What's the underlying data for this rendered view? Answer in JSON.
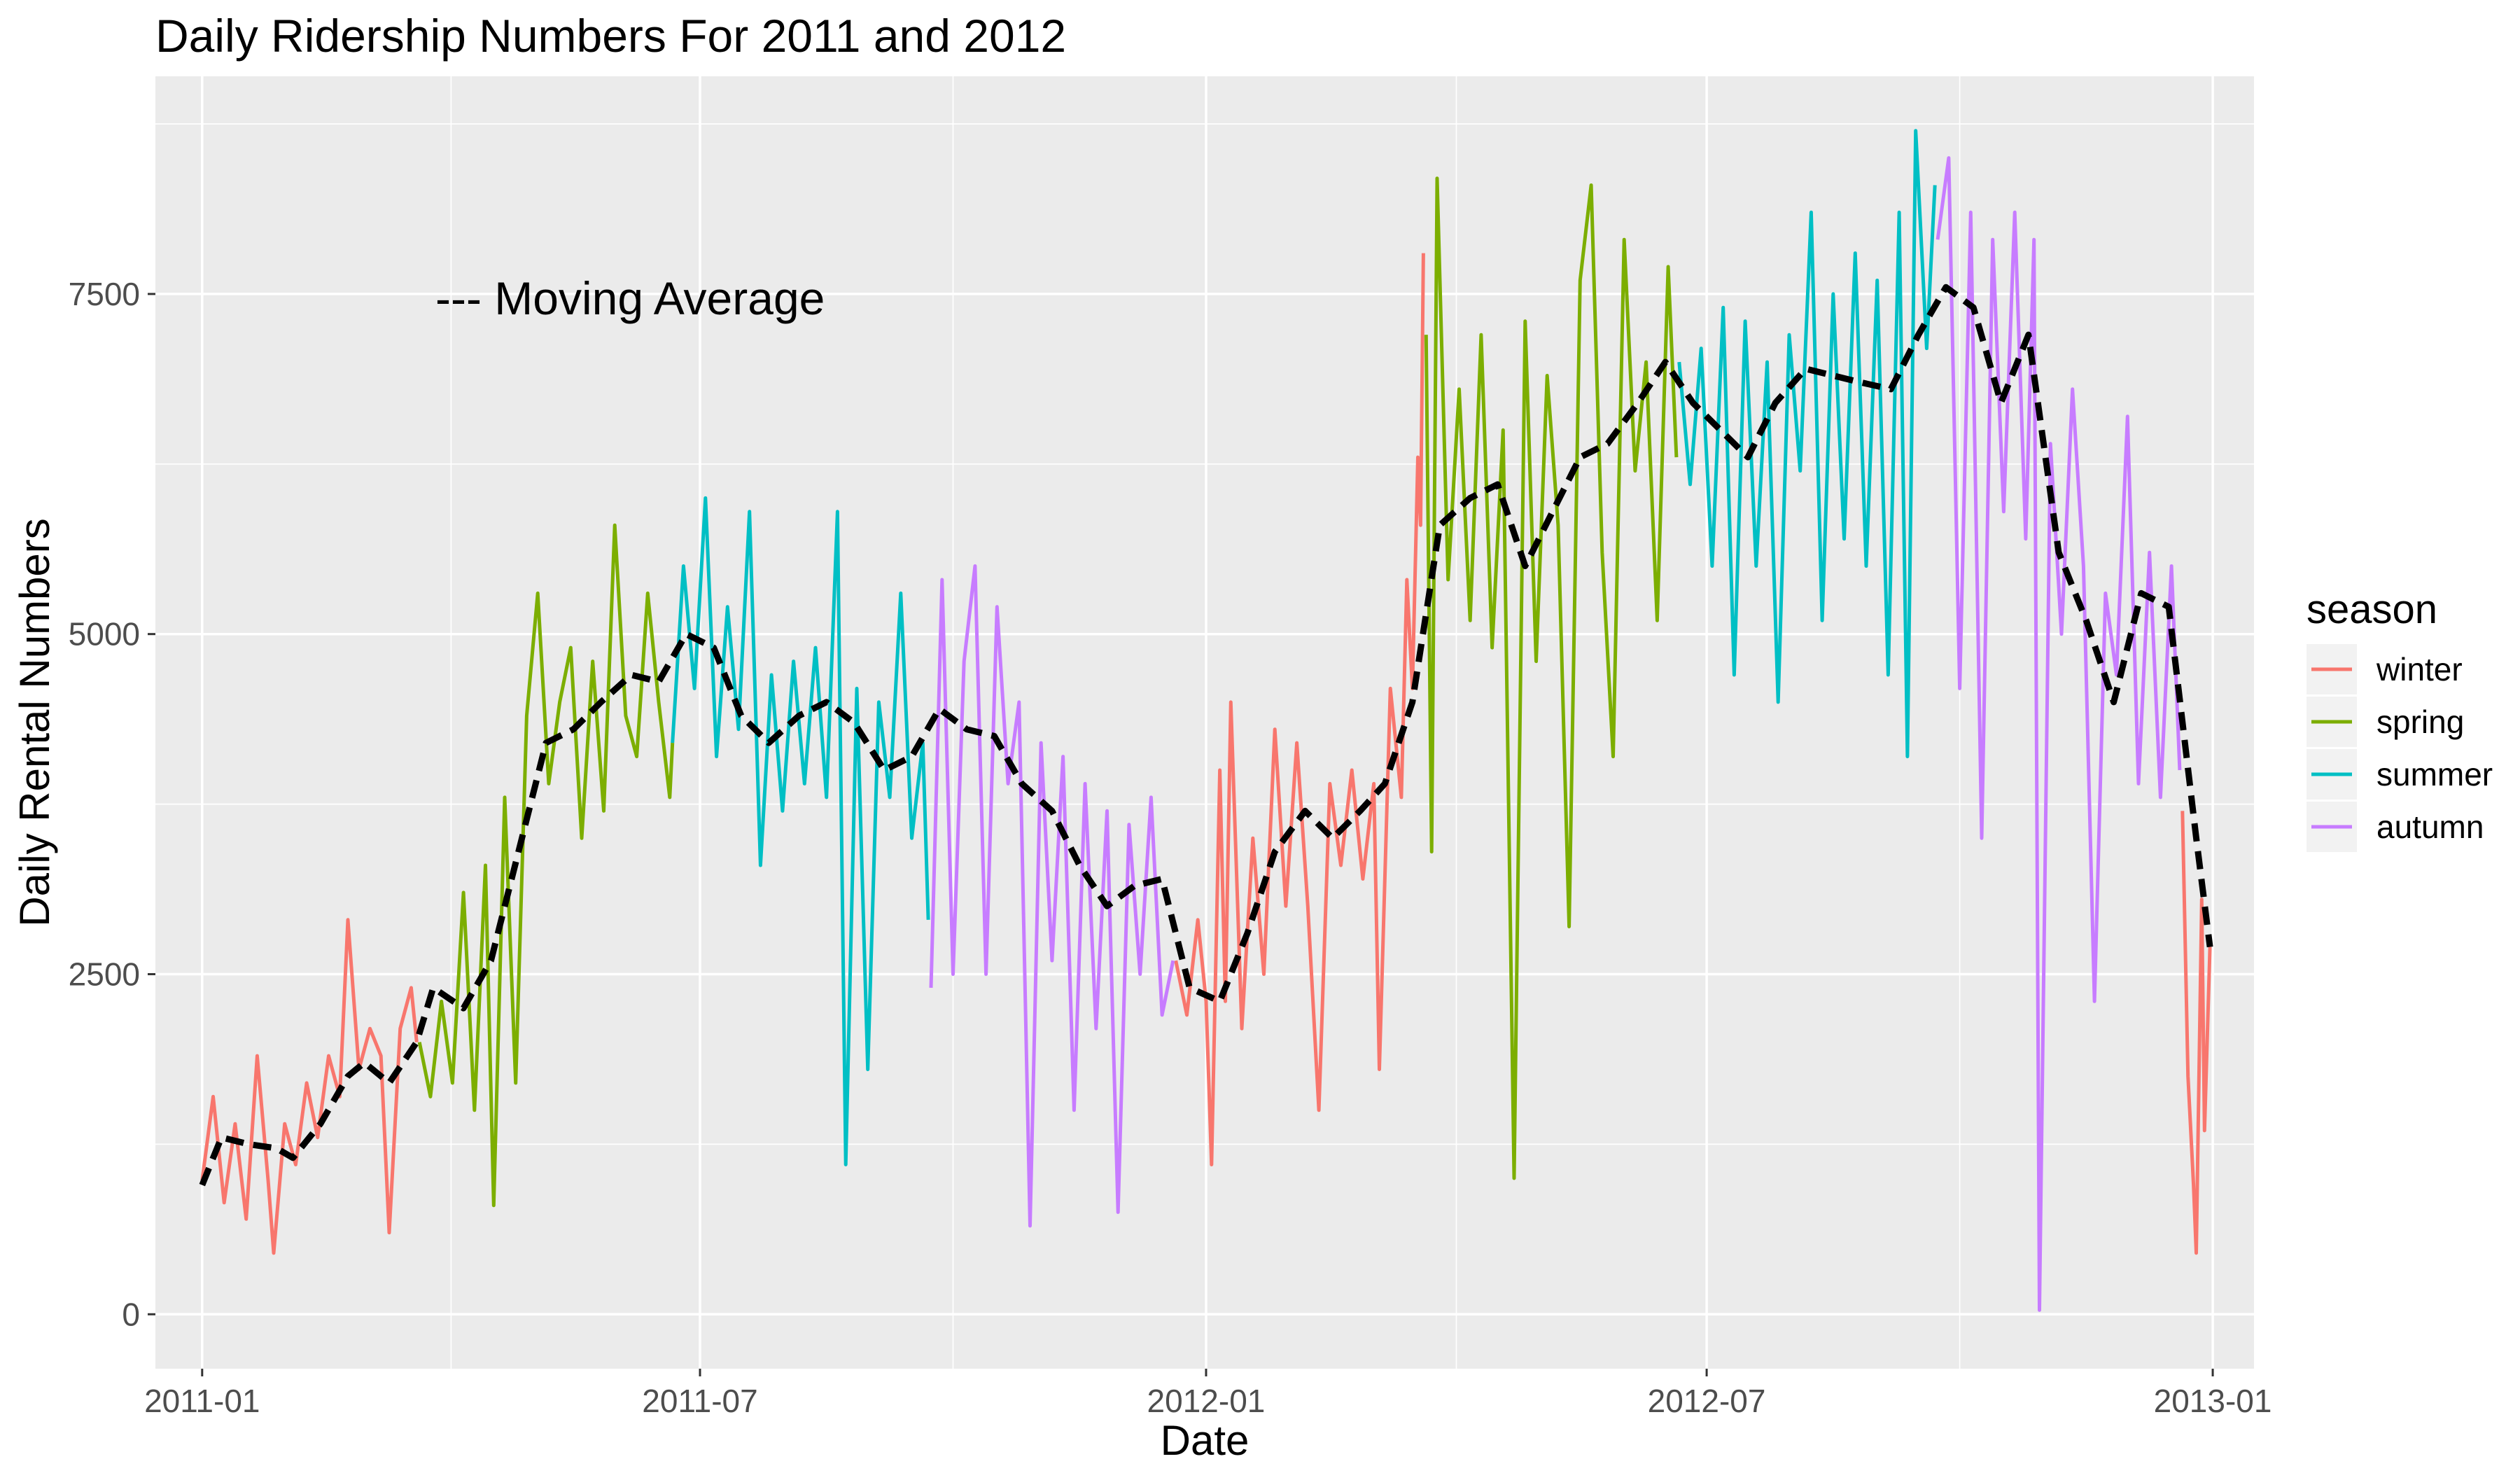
{
  "chart_data": {
    "type": "line",
    "title": "Daily Ridership Numbers For 2011 and 2012",
    "xlabel": "Date",
    "ylabel": "Daily Rental Numbers",
    "annotation": "--- Moving Average",
    "x_ticks": [
      "2011-01",
      "2011-07",
      "2012-01",
      "2012-07",
      "2013-01"
    ],
    "y_ticks": [
      0,
      2500,
      5000,
      7500
    ],
    "xlim": [
      "2010-12-15",
      "2013-01-16"
    ],
    "ylim": [
      -400,
      9100
    ],
    "grid": true,
    "legend": {
      "title": "season",
      "position": "right"
    },
    "colors": {
      "winter": "#F8766D",
      "spring": "#7CAE00",
      "summer": "#00BFC4",
      "autumn": "#C77CFF",
      "moving_average": "#000000",
      "panel": "#EBEBEB",
      "grid": "#FFFFFF"
    },
    "series": [
      {
        "name": "winter",
        "points": [
          [
            "2011-01-01",
            985
          ],
          [
            "2011-01-05",
            1600
          ],
          [
            "2011-01-09",
            820
          ],
          [
            "2011-01-13",
            1400
          ],
          [
            "2011-01-17",
            700
          ],
          [
            "2011-01-21",
            1900
          ],
          [
            "2011-01-25",
            980
          ],
          [
            "2011-01-27",
            450
          ],
          [
            "2011-01-31",
            1400
          ],
          [
            "2011-02-04",
            1100
          ],
          [
            "2011-02-08",
            1700
          ],
          [
            "2011-02-12",
            1300
          ],
          [
            "2011-02-16",
            1900
          ],
          [
            "2011-02-20",
            1600
          ],
          [
            "2011-02-23",
            2900
          ],
          [
            "2011-02-27",
            1800
          ],
          [
            "2011-03-03",
            2100
          ],
          [
            "2011-03-07",
            1900
          ],
          [
            "2011-03-10",
            600
          ],
          [
            "2011-03-14",
            2100
          ],
          [
            "2011-03-18",
            2400
          ],
          [
            "2011-03-20",
            2000
          ],
          [
            "2011-12-21",
            2600
          ],
          [
            "2011-12-25",
            2200
          ],
          [
            "2011-12-29",
            2900
          ],
          [
            "2012-01-01",
            2300
          ],
          [
            "2012-01-03",
            1100
          ],
          [
            "2012-01-06",
            4000
          ],
          [
            "2012-01-08",
            2300
          ],
          [
            "2012-01-10",
            4500
          ],
          [
            "2012-01-14",
            2100
          ],
          [
            "2012-01-18",
            3500
          ],
          [
            "2012-01-22",
            2500
          ],
          [
            "2012-01-26",
            4300
          ],
          [
            "2012-01-30",
            3000
          ],
          [
            "2012-02-03",
            4200
          ],
          [
            "2012-02-07",
            3000
          ],
          [
            "2012-02-11",
            1500
          ],
          [
            "2012-02-15",
            3900
          ],
          [
            "2012-02-19",
            3300
          ],
          [
            "2012-02-23",
            4000
          ],
          [
            "2012-02-27",
            3200
          ],
          [
            "2012-03-02",
            3900
          ],
          [
            "2012-03-04",
            1800
          ],
          [
            "2012-03-08",
            4600
          ],
          [
            "2012-03-12",
            3800
          ],
          [
            "2012-03-14",
            5400
          ],
          [
            "2012-03-16",
            4600
          ],
          [
            "2012-03-18",
            6300
          ],
          [
            "2012-03-19",
            5800
          ],
          [
            "2012-03-20",
            7800
          ],
          [
            "2012-12-21",
            3700
          ],
          [
            "2012-12-23",
            1750
          ],
          [
            "2012-12-25",
            950
          ],
          [
            "2012-12-26",
            450
          ],
          [
            "2012-12-28",
            3050
          ],
          [
            "2012-12-29",
            1350
          ],
          [
            "2012-12-31",
            2700
          ]
        ]
      },
      {
        "name": "spring",
        "points": [
          [
            "2011-03-21",
            2000
          ],
          [
            "2011-03-25",
            1600
          ],
          [
            "2011-03-29",
            2300
          ],
          [
            "2011-04-02",
            1700
          ],
          [
            "2011-04-06",
            3100
          ],
          [
            "2011-04-10",
            1500
          ],
          [
            "2011-04-14",
            3300
          ],
          [
            "2011-04-17",
            800
          ],
          [
            "2011-04-21",
            3800
          ],
          [
            "2011-04-25",
            1700
          ],
          [
            "2011-04-29",
            4400
          ],
          [
            "2011-05-03",
            5300
          ],
          [
            "2011-05-07",
            3900
          ],
          [
            "2011-05-11",
            4500
          ],
          [
            "2011-05-15",
            4900
          ],
          [
            "2011-05-19",
            3500
          ],
          [
            "2011-05-23",
            4800
          ],
          [
            "2011-05-27",
            3700
          ],
          [
            "2011-05-31",
            5800
          ],
          [
            "2011-06-04",
            4400
          ],
          [
            "2011-06-08",
            4100
          ],
          [
            "2011-06-12",
            5300
          ],
          [
            "2011-06-16",
            4500
          ],
          [
            "2011-06-20",
            3800
          ],
          [
            "2011-06-21",
            4200
          ],
          [
            "2012-03-21",
            7200
          ],
          [
            "2012-03-23",
            3400
          ],
          [
            "2012-03-25",
            8350
          ],
          [
            "2012-03-29",
            5400
          ],
          [
            "2012-04-02",
            6800
          ],
          [
            "2012-04-06",
            5100
          ],
          [
            "2012-04-10",
            7200
          ],
          [
            "2012-04-14",
            4900
          ],
          [
            "2012-04-18",
            6500
          ],
          [
            "2012-04-22",
            1000
          ],
          [
            "2012-04-26",
            7300
          ],
          [
            "2012-04-30",
            4800
          ],
          [
            "2012-05-04",
            6900
          ],
          [
            "2012-05-08",
            5800
          ],
          [
            "2012-05-12",
            2850
          ],
          [
            "2012-05-16",
            7600
          ],
          [
            "2012-05-20",
            8300
          ],
          [
            "2012-05-24",
            5600
          ],
          [
            "2012-05-28",
            4100
          ],
          [
            "2012-06-01",
            7900
          ],
          [
            "2012-06-05",
            6200
          ],
          [
            "2012-06-09",
            7000
          ],
          [
            "2012-06-13",
            5100
          ],
          [
            "2012-06-17",
            7700
          ],
          [
            "2012-06-20",
            6300
          ]
        ]
      },
      {
        "name": "summer",
        "points": [
          [
            "2011-06-21",
            4200
          ],
          [
            "2011-06-25",
            5500
          ],
          [
            "2011-06-29",
            4600
          ],
          [
            "2011-07-03",
            6000
          ],
          [
            "2011-07-07",
            4100
          ],
          [
            "2011-07-11",
            5200
          ],
          [
            "2011-07-15",
            4300
          ],
          [
            "2011-07-19",
            5900
          ],
          [
            "2011-07-23",
            3300
          ],
          [
            "2011-07-27",
            4700
          ],
          [
            "2011-07-31",
            3700
          ],
          [
            "2011-08-04",
            4800
          ],
          [
            "2011-08-08",
            3900
          ],
          [
            "2011-08-12",
            4900
          ],
          [
            "2011-08-16",
            3800
          ],
          [
            "2011-08-20",
            5900
          ],
          [
            "2011-08-23",
            1100
          ],
          [
            "2011-08-27",
            4600
          ],
          [
            "2011-08-31",
            1800
          ],
          [
            "2011-09-04",
            4500
          ],
          [
            "2011-09-08",
            3800
          ],
          [
            "2011-09-12",
            5300
          ],
          [
            "2011-09-16",
            3500
          ],
          [
            "2011-09-20",
            4200
          ],
          [
            "2011-09-22",
            2900
          ],
          [
            "2012-06-21",
            7000
          ],
          [
            "2012-06-25",
            6100
          ],
          [
            "2012-06-29",
            7100
          ],
          [
            "2012-07-03",
            5500
          ],
          [
            "2012-07-07",
            7400
          ],
          [
            "2012-07-11",
            4700
          ],
          [
            "2012-07-15",
            7300
          ],
          [
            "2012-07-19",
            5500
          ],
          [
            "2012-07-23",
            7000
          ],
          [
            "2012-07-27",
            4500
          ],
          [
            "2012-07-31",
            7200
          ],
          [
            "2012-08-04",
            6200
          ],
          [
            "2012-08-08",
            8100
          ],
          [
            "2012-08-12",
            5100
          ],
          [
            "2012-08-16",
            7500
          ],
          [
            "2012-08-20",
            5700
          ],
          [
            "2012-08-24",
            7800
          ],
          [
            "2012-08-28",
            5500
          ],
          [
            "2012-09-01",
            7600
          ],
          [
            "2012-09-05",
            4700
          ],
          [
            "2012-09-09",
            8100
          ],
          [
            "2012-09-12",
            4100
          ],
          [
            "2012-09-15",
            8700
          ],
          [
            "2012-09-19",
            7100
          ],
          [
            "2012-09-22",
            8300
          ]
        ]
      },
      {
        "name": "autumn",
        "points": [
          [
            "2011-09-23",
            2400
          ],
          [
            "2011-09-27",
            5400
          ],
          [
            "2011-10-01",
            2500
          ],
          [
            "2011-10-05",
            4800
          ],
          [
            "2011-10-09",
            5500
          ],
          [
            "2011-10-13",
            2500
          ],
          [
            "2011-10-17",
            5200
          ],
          [
            "2011-10-21",
            3900
          ],
          [
            "2011-10-25",
            4500
          ],
          [
            "2011-10-29",
            650
          ],
          [
            "2011-11-02",
            4200
          ],
          [
            "2011-11-06",
            2600
          ],
          [
            "2011-11-10",
            4100
          ],
          [
            "2011-11-14",
            1500
          ],
          [
            "2011-11-18",
            3900
          ],
          [
            "2011-11-22",
            2100
          ],
          [
            "2011-11-26",
            3700
          ],
          [
            "2011-11-30",
            750
          ],
          [
            "2011-12-04",
            3600
          ],
          [
            "2011-12-08",
            2500
          ],
          [
            "2011-12-12",
            3800
          ],
          [
            "2011-12-16",
            2200
          ],
          [
            "2011-12-20",
            2600
          ],
          [
            "2012-09-23",
            7900
          ],
          [
            "2012-09-27",
            8500
          ],
          [
            "2012-10-01",
            4600
          ],
          [
            "2012-10-05",
            8100
          ],
          [
            "2012-10-09",
            3500
          ],
          [
            "2012-10-13",
            7900
          ],
          [
            "2012-10-17",
            5900
          ],
          [
            "2012-10-21",
            8100
          ],
          [
            "2012-10-25",
            5700
          ],
          [
            "2012-10-28",
            7900
          ],
          [
            "2012-10-30",
            30
          ],
          [
            "2012-11-03",
            6400
          ],
          [
            "2012-11-07",
            5000
          ],
          [
            "2012-11-11",
            6800
          ],
          [
            "2012-11-15",
            5500
          ],
          [
            "2012-11-19",
            2300
          ],
          [
            "2012-11-23",
            5300
          ],
          [
            "2012-11-27",
            4700
          ],
          [
            "2012-12-01",
            6600
          ],
          [
            "2012-12-05",
            3900
          ],
          [
            "2012-12-09",
            5600
          ],
          [
            "2012-12-13",
            3800
          ],
          [
            "2012-12-17",
            5500
          ],
          [
            "2012-12-20",
            4000
          ]
        ]
      }
    ],
    "moving_average": [
      [
        "2011-01-01",
        950
      ],
      [
        "2011-01-08",
        1300
      ],
      [
        "2011-01-18",
        1250
      ],
      [
        "2011-01-28",
        1220
      ],
      [
        "2011-02-03",
        1150
      ],
      [
        "2011-02-13",
        1400
      ],
      [
        "2011-02-23",
        1750
      ],
      [
        "2011-03-01",
        1850
      ],
      [
        "2011-03-10",
        1700
      ],
      [
        "2011-03-20",
        2000
      ],
      [
        "2011-03-26",
        2400
      ],
      [
        "2011-04-06",
        2250
      ],
      [
        "2011-04-16",
        2600
      ],
      [
        "2011-04-26",
        3400
      ],
      [
        "2011-05-06",
        4200
      ],
      [
        "2011-05-16",
        4300
      ],
      [
        "2011-05-26",
        4500
      ],
      [
        "2011-06-06",
        4700
      ],
      [
        "2011-06-16",
        4650
      ],
      [
        "2011-06-26",
        5000
      ],
      [
        "2011-07-06",
        4900
      ],
      [
        "2011-07-16",
        4400
      ],
      [
        "2011-07-26",
        4200
      ],
      [
        "2011-08-06",
        4400
      ],
      [
        "2011-08-16",
        4500
      ],
      [
        "2011-08-26",
        4350
      ],
      [
        "2011-09-06",
        4000
      ],
      [
        "2011-09-16",
        4100
      ],
      [
        "2011-09-26",
        4450
      ],
      [
        "2011-10-06",
        4300
      ],
      [
        "2011-10-16",
        4250
      ],
      [
        "2011-10-26",
        3900
      ],
      [
        "2011-11-06",
        3700
      ],
      [
        "2011-11-16",
        3300
      ],
      [
        "2011-11-26",
        3000
      ],
      [
        "2011-12-06",
        3150
      ],
      [
        "2011-12-16",
        3200
      ],
      [
        "2011-12-26",
        2400
      ],
      [
        "2012-01-06",
        2300
      ],
      [
        "2012-01-16",
        2800
      ],
      [
        "2012-01-26",
        3400
      ],
      [
        "2012-02-06",
        3700
      ],
      [
        "2012-02-16",
        3500
      ],
      [
        "2012-02-26",
        3700
      ],
      [
        "2012-03-06",
        3900
      ],
      [
        "2012-03-16",
        4500
      ],
      [
        "2012-03-26",
        5800
      ],
      [
        "2012-04-06",
        6000
      ],
      [
        "2012-04-16",
        6100
      ],
      [
        "2012-04-26",
        5500
      ],
      [
        "2012-05-06",
        5900
      ],
      [
        "2012-05-16",
        6300
      ],
      [
        "2012-05-26",
        6400
      ],
      [
        "2012-06-06",
        6700
      ],
      [
        "2012-06-16",
        7000
      ],
      [
        "2012-06-26",
        6700
      ],
      [
        "2012-07-06",
        6500
      ],
      [
        "2012-07-16",
        6300
      ],
      [
        "2012-07-26",
        6700
      ],
      [
        "2012-08-06",
        6950
      ],
      [
        "2012-08-16",
        6900
      ],
      [
        "2012-08-26",
        6850
      ],
      [
        "2012-09-06",
        6800
      ],
      [
        "2012-09-16",
        7200
      ],
      [
        "2012-09-26",
        7550
      ],
      [
        "2012-10-06",
        7400
      ],
      [
        "2012-10-16",
        6700
      ],
      [
        "2012-10-26",
        7200
      ],
      [
        "2012-11-06",
        5600
      ],
      [
        "2012-11-16",
        5100
      ],
      [
        "2012-11-26",
        4500
      ],
      [
        "2012-12-06",
        5300
      ],
      [
        "2012-12-16",
        5200
      ],
      [
        "2012-12-26",
        3500
      ],
      [
        "2012-12-31",
        2700
      ]
    ]
  }
}
